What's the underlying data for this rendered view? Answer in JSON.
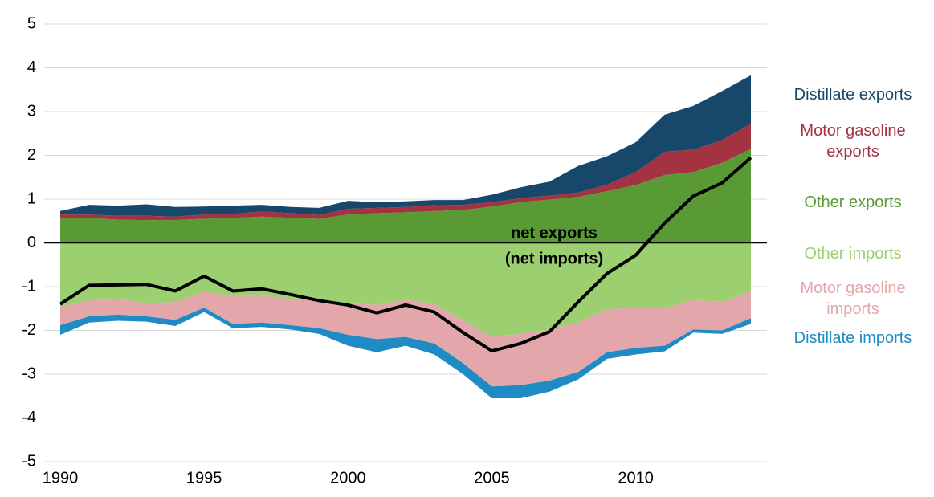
{
  "chart_data": {
    "type": "stacked_area",
    "x": [
      1990,
      1991,
      1992,
      1993,
      1994,
      1995,
      1996,
      1997,
      1998,
      1999,
      2000,
      2001,
      2002,
      2003,
      2004,
      2005,
      2006,
      2007,
      2008,
      2009,
      2010,
      2011,
      2012,
      2013,
      2014
    ],
    "xlim": [
      1990,
      2014
    ],
    "xticks": [
      1990,
      1995,
      2000,
      2005,
      2010
    ],
    "ylim": [
      -5,
      5
    ],
    "yticks": [
      -5,
      -4,
      -3,
      -2,
      -1,
      0,
      1,
      2,
      3,
      4,
      5
    ],
    "grid": true,
    "annotations": [
      "net exports",
      "(net imports)"
    ],
    "series": [
      {
        "name": "Distillate exports",
        "color": "#17476b",
        "values": [
          0.08,
          0.22,
          0.23,
          0.26,
          0.22,
          0.18,
          0.19,
          0.15,
          0.14,
          0.16,
          0.18,
          0.13,
          0.13,
          0.12,
          0.11,
          0.17,
          0.25,
          0.32,
          0.61,
          0.65,
          0.68,
          0.85,
          1.0,
          1.12,
          1.11
        ]
      },
      {
        "name": "Motor gasoline exports",
        "color": "#a33340",
        "values": [
          0.08,
          0.08,
          0.09,
          0.1,
          0.08,
          0.1,
          0.09,
          0.12,
          0.11,
          0.09,
          0.13,
          0.12,
          0.12,
          0.13,
          0.12,
          0.1,
          0.09,
          0.09,
          0.1,
          0.15,
          0.3,
          0.53,
          0.51,
          0.52,
          0.57
        ]
      },
      {
        "name": "Other exports",
        "color": "#5a9a35",
        "values": [
          0.57,
          0.57,
          0.53,
          0.52,
          0.52,
          0.55,
          0.57,
          0.6,
          0.57,
          0.55,
          0.65,
          0.68,
          0.7,
          0.73,
          0.75,
          0.83,
          0.93,
          0.99,
          1.05,
          1.18,
          1.32,
          1.55,
          1.62,
          1.83,
          2.15
        ]
      },
      {
        "name": "Other imports",
        "color": "#9ccf6f",
        "values": [
          -1.45,
          -1.32,
          -1.28,
          -1.38,
          -1.35,
          -1.12,
          -1.22,
          -1.2,
          -1.28,
          -1.3,
          -1.38,
          -1.42,
          -1.3,
          -1.4,
          -1.78,
          -2.15,
          -2.08,
          -1.98,
          -1.82,
          -1.52,
          -1.48,
          -1.5,
          -1.3,
          -1.35,
          -1.1
        ]
      },
      {
        "name": "Motor gasoline imports",
        "color": "#e3a6ab",
        "values": [
          -0.43,
          -0.36,
          -0.36,
          -0.3,
          -0.41,
          -0.36,
          -0.63,
          -0.62,
          -0.6,
          -0.65,
          -0.72,
          -0.78,
          -0.85,
          -0.9,
          -0.97,
          -1.13,
          -1.17,
          -1.17,
          -1.13,
          -0.98,
          -0.92,
          -0.85,
          -0.68,
          -0.65,
          -0.62
        ]
      },
      {
        "name": "Distillate imports",
        "color": "#1f8bc4",
        "values": [
          -0.22,
          -0.14,
          -0.14,
          -0.12,
          -0.14,
          -0.1,
          -0.1,
          -0.1,
          -0.1,
          -0.13,
          -0.25,
          -0.3,
          -0.2,
          -0.25,
          -0.25,
          -0.27,
          -0.3,
          -0.25,
          -0.17,
          -0.15,
          -0.15,
          -0.13,
          -0.07,
          -0.08,
          -0.13
        ]
      }
    ],
    "net": {
      "color": "#000000",
      "values": [
        -1.4,
        -0.97,
        -0.96,
        -0.95,
        -1.1,
        -0.76,
        -1.1,
        -1.05,
        -1.18,
        -1.32,
        -1.42,
        -1.6,
        -1.42,
        -1.58,
        -2.05,
        -2.47,
        -2.3,
        -2.03,
        -1.35,
        -0.7,
        -0.28,
        0.45,
        1.07,
        1.37,
        1.95
      ]
    }
  }
}
